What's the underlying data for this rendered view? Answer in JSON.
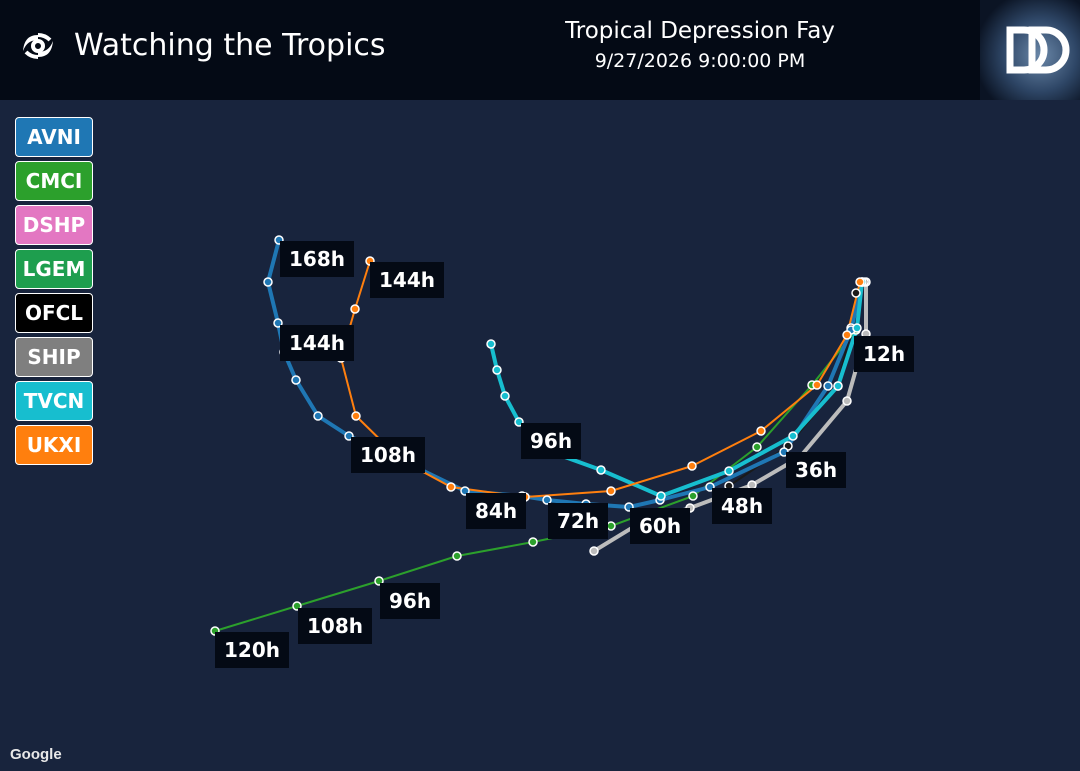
{
  "header": {
    "app_title": "Watching the Tropics",
    "storm_name": "Tropical Depression Fay",
    "storm_time": "9/27/2026 9:00:00 PM",
    "icon": "hurricane-icon",
    "logo_icon": "dd-logo-icon"
  },
  "legend": [
    {
      "label": "AVNI",
      "color": "#1f77b4"
    },
    {
      "label": "CMCI",
      "color": "#2ca02c"
    },
    {
      "label": "DSHP",
      "color": "#e377c2"
    },
    {
      "label": "LGEM",
      "color": "#1e9e4e"
    },
    {
      "label": "OFCL",
      "color": "#000000"
    },
    {
      "label": "SHIP",
      "color": "#7f7f7f"
    },
    {
      "label": "TVCN",
      "color": "#17becf"
    },
    {
      "label": "UKXI",
      "color": "#ff7f0e"
    }
  ],
  "map_labels": [
    {
      "text": "168h"
    },
    {
      "text": "144h"
    },
    {
      "text": "144h"
    },
    {
      "text": "12h"
    },
    {
      "text": "96h"
    },
    {
      "text": "108h"
    },
    {
      "text": "36h"
    },
    {
      "text": "84h"
    },
    {
      "text": "48h"
    },
    {
      "text": "72h"
    },
    {
      "text": "60h"
    },
    {
      "text": "96h"
    },
    {
      "text": "108h"
    },
    {
      "text": "120h"
    }
  ],
  "attribution": "Google"
}
